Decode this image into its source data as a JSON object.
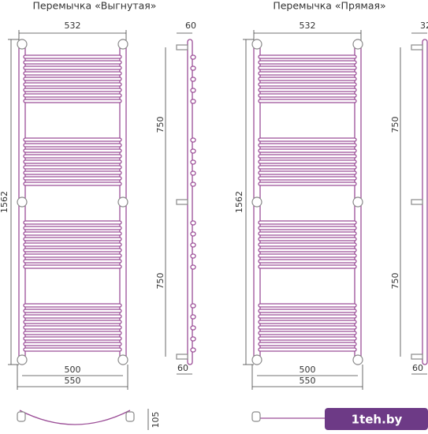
{
  "panels": [
    {
      "title": "Перемычка «Выгнутая»",
      "top_width": "532",
      "height": "1562",
      "side_top": "60",
      "side_upper": "750",
      "side_lower": "750",
      "bottom_inner": "500",
      "bottom_outer": "550",
      "side_bottom": "60",
      "plan_depth": "105"
    },
    {
      "title": "Перемычка «Прямая»",
      "top_width": "532",
      "height": "1562",
      "side_top": "32",
      "side_upper": "750",
      "side_lower": "750",
      "bottom_inner": "500",
      "bottom_outer": "550",
      "side_bottom": "60"
    }
  ],
  "watermark": "1teh.by"
}
